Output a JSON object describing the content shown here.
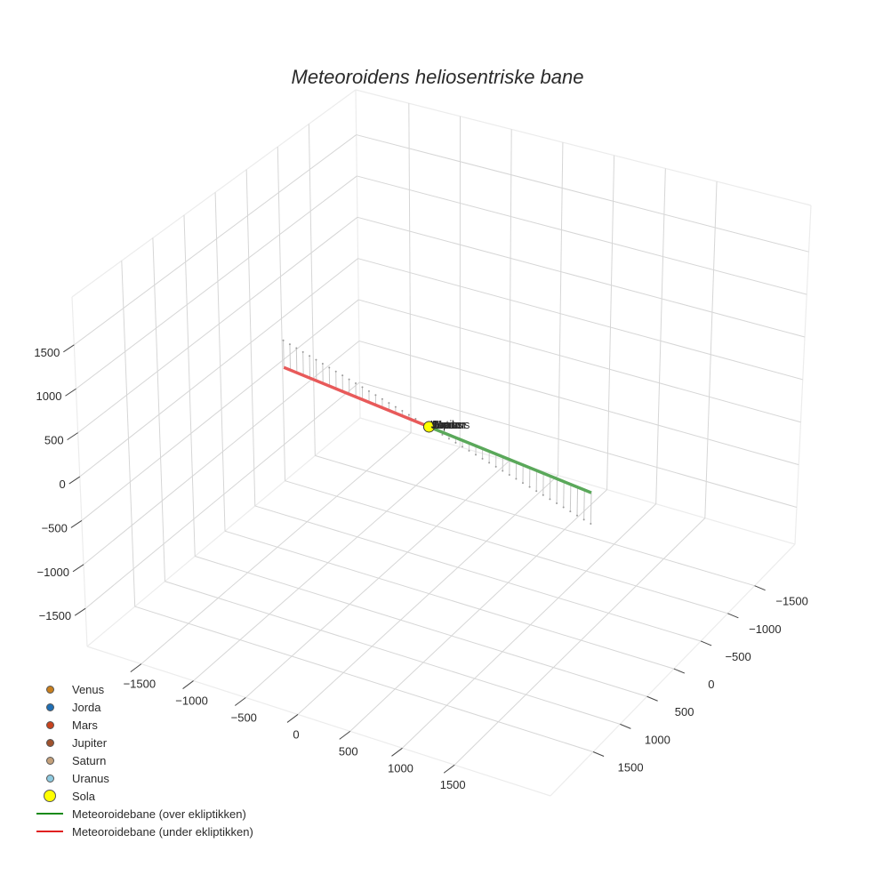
{
  "title": "Meteoroidens heliosentriske bane",
  "axes": {
    "x": {
      "ticks": [
        -1500,
        -1000,
        -500,
        0,
        500,
        1000,
        1500
      ],
      "tick_labels": [
        "−1500",
        "−1000",
        "−500",
        "0",
        "500",
        "1000",
        "1500"
      ],
      "range": [
        -2018,
        2418
      ]
    },
    "y": {
      "ticks": [
        -1500,
        -1000,
        -500,
        0,
        500,
        1000,
        1500
      ],
      "tick_labels": [
        "−1500",
        "−1000",
        "−500",
        "0",
        "500",
        "1000",
        "1500"
      ],
      "range": [
        2295,
        -2250
      ]
    },
    "z": {
      "ticks": [
        -1500,
        -1000,
        -500,
        0,
        500,
        1000,
        1500
      ],
      "tick_labels": [
        "−1500",
        "−1000",
        "−500",
        "0",
        "500",
        "1000",
        "1500"
      ],
      "range": [
        -1933,
        2045
      ]
    }
  },
  "legend": [
    {
      "label": "Venus",
      "type": "marker",
      "color": "#c87f1e",
      "size": 9
    },
    {
      "label": "Jorda",
      "type": "marker",
      "color": "#1f6fb5",
      "size": 9
    },
    {
      "label": "Mars",
      "type": "marker",
      "color": "#c8431e",
      "size": 9
    },
    {
      "label": "Jupiter",
      "type": "marker",
      "color": "#a0522d",
      "size": 9
    },
    {
      "label": "Saturn",
      "type": "marker",
      "color": "#c4a07a",
      "size": 9
    },
    {
      "label": "Uranus",
      "type": "marker",
      "color": "#8ecae0",
      "size": 9
    },
    {
      "label": "Sola",
      "type": "marker",
      "color": "#ffff00",
      "size": 14
    },
    {
      "label": "Meteoroidebane (over ekliptikken)",
      "type": "line",
      "color": "#1a8a1a"
    },
    {
      "label": "Meteoroidebane (under ekliptikken)",
      "type": "line",
      "color": "#e02020"
    }
  ],
  "chart_data": {
    "type": "scatter3d",
    "title": "Meteoroidens heliosentriske bane",
    "xlabel": "",
    "ylabel": "",
    "zlabel": "",
    "xlim": [
      -2018,
      2418
    ],
    "ylim": [
      -2250,
      2295
    ],
    "zlim": [
      -1933,
      2045
    ],
    "grid": true,
    "legend_position": "bottom-left",
    "series": [
      {
        "name": "Venus",
        "type": "marker",
        "x": [
          0
        ],
        "y": [
          0
        ],
        "z": [
          0
        ],
        "color": "#c87f1e"
      },
      {
        "name": "Jorda",
        "type": "marker",
        "x": [
          0
        ],
        "y": [
          0
        ],
        "z": [
          0
        ],
        "color": "#1f6fb5"
      },
      {
        "name": "Mars",
        "type": "marker",
        "x": [
          0
        ],
        "y": [
          0
        ],
        "z": [
          0
        ],
        "color": "#c8431e"
      },
      {
        "name": "Jupiter",
        "type": "marker",
        "x": [
          0
        ],
        "y": [
          0
        ],
        "z": [
          0
        ],
        "color": "#a0522d"
      },
      {
        "name": "Saturn",
        "type": "marker",
        "x": [
          0
        ],
        "y": [
          0
        ],
        "z": [
          0
        ],
        "color": "#c4a07a"
      },
      {
        "name": "Uranus",
        "type": "marker",
        "x": [
          0
        ],
        "y": [
          0
        ],
        "z": [
          0
        ],
        "color": "#8ecae0"
      },
      {
        "name": "Sola",
        "type": "marker",
        "x": [
          0
        ],
        "y": [
          0
        ],
        "z": [
          0
        ],
        "color": "#ffff00"
      },
      {
        "name": "Meteoroidebane (under ekliptikken)",
        "type": "line",
        "color": "#e85a5a",
        "x": [
          -1805,
          0
        ],
        "y": [
          -673,
          0
        ],
        "z": [
          -320,
          0
        ],
        "droplines": 22
      },
      {
        "name": "Meteoroidebane (over ekliptikken)",
        "type": "line",
        "color": "#5aa85a",
        "x": [
          0,
          1957
        ],
        "y": [
          0,
          732
        ],
        "z": [
          0,
          350
        ],
        "droplines": 24
      }
    ],
    "point_labels": [
      "Venus",
      "Jorda",
      "Mars",
      "Jupiter",
      "Saturn",
      "Uranus"
    ]
  }
}
